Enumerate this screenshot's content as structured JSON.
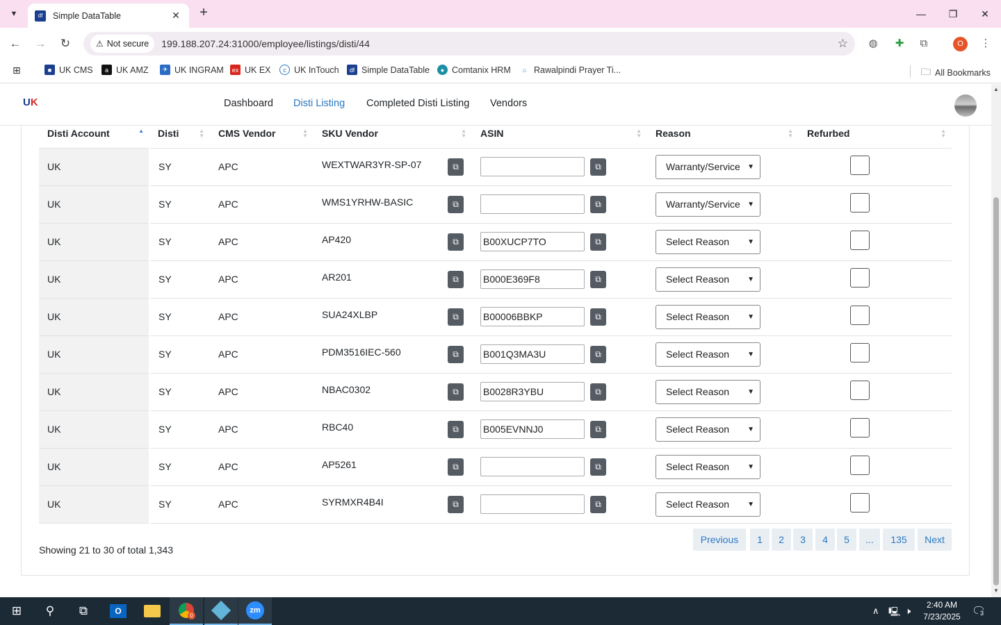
{
  "browser": {
    "tab_title": "Simple DataTable",
    "not_secure_label": "Not secure",
    "url": "199.188.207.24:31000/employee/listings/disti/44",
    "profile_initial": "O",
    "bookmarks": [
      "UK CMS",
      "UK AMZ",
      "UK INGRAM",
      "UK EX",
      "UK InTouch",
      "Simple DataTable",
      "Comtanix HRM",
      "Rawalpindi Prayer Ti..."
    ],
    "all_bookmarks_label": "All Bookmarks"
  },
  "nav": {
    "links": [
      "Dashboard",
      "Disti Listing",
      "Completed Disti Listing",
      "Vendors"
    ],
    "active": "Disti Listing"
  },
  "table": {
    "columns": [
      "Disti Account",
      "Disti",
      "CMS Vendor",
      "SKU Vendor",
      "ASIN",
      "Reason",
      "Refurbed"
    ],
    "rows": [
      {
        "account": "UK",
        "disti": "SY",
        "vendor": "APC",
        "sku": "WEXTWAR3YR-SP-07",
        "asin": "",
        "reason": "Warranty/Service"
      },
      {
        "account": "UK",
        "disti": "SY",
        "vendor": "APC",
        "sku": "WMS1YRHW-BASIC",
        "asin": "",
        "reason": "Warranty/Service"
      },
      {
        "account": "UK",
        "disti": "SY",
        "vendor": "APC",
        "sku": "AP420",
        "asin": "B00XUCP7TO",
        "reason": "Select Reason"
      },
      {
        "account": "UK",
        "disti": "SY",
        "vendor": "APC",
        "sku": "AR201",
        "asin": "B000E369F8",
        "reason": "Select Reason"
      },
      {
        "account": "UK",
        "disti": "SY",
        "vendor": "APC",
        "sku": "SUA24XLBP",
        "asin": "B00006BBKP",
        "reason": "Select Reason"
      },
      {
        "account": "UK",
        "disti": "SY",
        "vendor": "APC",
        "sku": "PDM3516IEC-560",
        "asin": "B001Q3MA3U",
        "reason": "Select Reason"
      },
      {
        "account": "UK",
        "disti": "SY",
        "vendor": "APC",
        "sku": "NBAC0302",
        "asin": "B0028R3YBU",
        "reason": "Select Reason"
      },
      {
        "account": "UK",
        "disti": "SY",
        "vendor": "APC",
        "sku": "RBC40",
        "asin": "B005EVNNJ0",
        "reason": "Select Reason"
      },
      {
        "account": "UK",
        "disti": "SY",
        "vendor": "APC",
        "sku": "AP5261",
        "asin": "",
        "reason": "Select Reason"
      },
      {
        "account": "UK",
        "disti": "SY",
        "vendor": "APC",
        "sku": "SYRMXR4B4I",
        "asin": "",
        "reason": "Select Reason"
      }
    ]
  },
  "footer": {
    "showing": "Showing 21 to 30 of total 1,343",
    "pagination": [
      "Previous",
      "1",
      "2",
      "3",
      "4",
      "5",
      "...",
      "135",
      "Next"
    ]
  },
  "taskbar": {
    "time": "2:40 AM",
    "date": "7/23/2025",
    "notification_count": "3",
    "chrome_badge": "0"
  },
  "colors": {
    "accent": "#2a78c2",
    "tabstrip": "#f9dff0",
    "copy_button": "#545b62",
    "taskbar": "#1c2a36"
  }
}
